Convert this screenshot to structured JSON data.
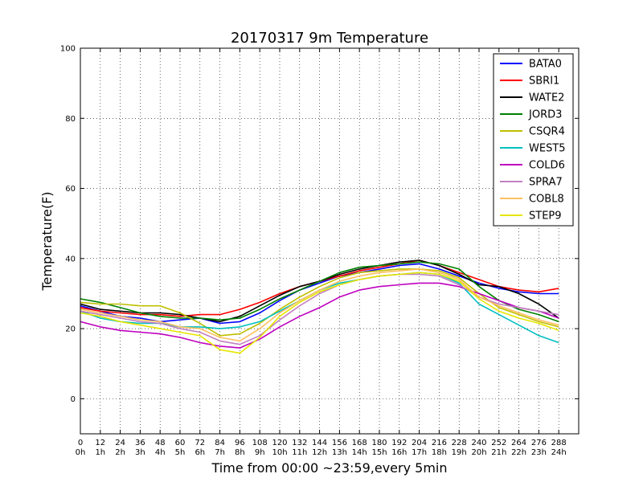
{
  "chart_data": {
    "type": "line",
    "title": "20170317 9m Temperature",
    "xlabel": "Time from 00:00 ~23:59,every 5min",
    "ylabel": "Temperature(F)",
    "xlim": [
      0,
      300
    ],
    "ylim": [
      -10,
      100
    ],
    "grid": true,
    "legend_position": "top-right",
    "x_ticks": [
      0,
      12,
      24,
      36,
      48,
      60,
      72,
      84,
      96,
      108,
      120,
      132,
      144,
      156,
      168,
      180,
      192,
      204,
      216,
      228,
      240,
      252,
      264,
      276,
      288
    ],
    "x_tick_labels_hour": [
      "0h",
      "1h",
      "2h",
      "3h",
      "4h",
      "5h",
      "6h",
      "7h",
      "8h",
      "9h",
      "10h",
      "11h",
      "12h",
      "13h",
      "14h",
      "15h",
      "16h",
      "17h",
      "18h",
      "19h",
      "20h",
      "21h",
      "22h",
      "23h",
      "24h"
    ],
    "y_ticks": [
      0,
      20,
      40,
      60,
      80,
      100
    ],
    "x": [
      0,
      12,
      24,
      36,
      48,
      60,
      72,
      84,
      96,
      108,
      120,
      132,
      144,
      156,
      168,
      180,
      192,
      204,
      216,
      228,
      240,
      252,
      264,
      276,
      288
    ],
    "series": [
      {
        "name": "BATA0",
        "color": "#0000ff",
        "values": [
          26.5,
          25,
          23.5,
          23,
          22,
          22.5,
          23,
          21.5,
          22,
          24.5,
          28,
          31,
          33,
          35,
          36,
          37,
          38,
          38.5,
          37,
          35,
          33,
          31.5,
          30.5,
          30,
          30
        ]
      },
      {
        "name": "SBRI1",
        "color": "#ff0000",
        "values": [
          26,
          25,
          24.5,
          24,
          24,
          23.5,
          24,
          24,
          25.5,
          27.5,
          30,
          32,
          33.5,
          35,
          36.5,
          37.5,
          38.5,
          39.5,
          38,
          36,
          34,
          32,
          31,
          30.5,
          31.5
        ]
      },
      {
        "name": "WATE2",
        "color": "#000000",
        "values": [
          27,
          25.5,
          25,
          24.5,
          24.5,
          24,
          23,
          22,
          23.5,
          26.5,
          29.5,
          32,
          33.5,
          35.5,
          37,
          38,
          39,
          39.5,
          38,
          35.5,
          32.5,
          32,
          30,
          27,
          23
        ]
      },
      {
        "name": "JORD3",
        "color": "#008000",
        "values": [
          28.5,
          27.5,
          26,
          24.5,
          23.5,
          23,
          23,
          22.5,
          23,
          25.5,
          28.5,
          31,
          33.5,
          36,
          37.5,
          38,
          38.5,
          39,
          38.5,
          37,
          32,
          28,
          25.5,
          24,
          22
        ]
      },
      {
        "name": "CSQR4",
        "color": "#bfbf00",
        "values": [
          27.5,
          27,
          27,
          26.5,
          26.5,
          24.5,
          21.5,
          18,
          18.5,
          21.5,
          25.5,
          29,
          32,
          34.5,
          36,
          36.5,
          37,
          37,
          36.5,
          34.5,
          30,
          26,
          24,
          22,
          20.5
        ]
      },
      {
        "name": "WEST5",
        "color": "#00bfbf",
        "values": [
          25,
          23,
          22,
          21.5,
          21.5,
          20.5,
          20.5,
          20,
          20.5,
          22,
          25,
          28,
          31,
          33,
          34,
          35,
          35.5,
          36,
          35.5,
          33,
          27,
          24,
          21,
          18,
          16
        ]
      },
      {
        "name": "COLD6",
        "color": "#bf00bf",
        "values": [
          22,
          20.5,
          19.5,
          19,
          18.5,
          17.5,
          16,
          15,
          14.5,
          17,
          20.5,
          23.5,
          26,
          29,
          31,
          32,
          32.5,
          33,
          33,
          32,
          30,
          28,
          26,
          25,
          23
        ]
      },
      {
        "name": "SPRA7",
        "color": "#c080c0",
        "values": [
          25,
          24,
          23,
          22,
          21.5,
          20,
          19,
          16.5,
          15.5,
          18,
          22.5,
          26.5,
          30,
          32.5,
          34,
          35,
          35.5,
          35.5,
          35,
          32.5,
          29,
          27,
          26,
          25,
          24
        ]
      },
      {
        "name": "COBL8",
        "color": "#ffbf60",
        "values": [
          25.5,
          24.5,
          23.5,
          22.5,
          22,
          20.5,
          20,
          17.5,
          16.5,
          20,
          24.5,
          28,
          31,
          33.5,
          35,
          36,
          36.5,
          37,
          36,
          34,
          29,
          26.5,
          24.5,
          22.5,
          21
        ]
      },
      {
        "name": "STEP9",
        "color": "#e6e600",
        "values": [
          24.5,
          23.5,
          22,
          21,
          20,
          19,
          18,
          14,
          13,
          17.5,
          23.5,
          27.5,
          30.5,
          32.5,
          34,
          35,
          35.5,
          36,
          35.5,
          33.5,
          28.5,
          25,
          23,
          21.5,
          19.5
        ]
      }
    ]
  }
}
